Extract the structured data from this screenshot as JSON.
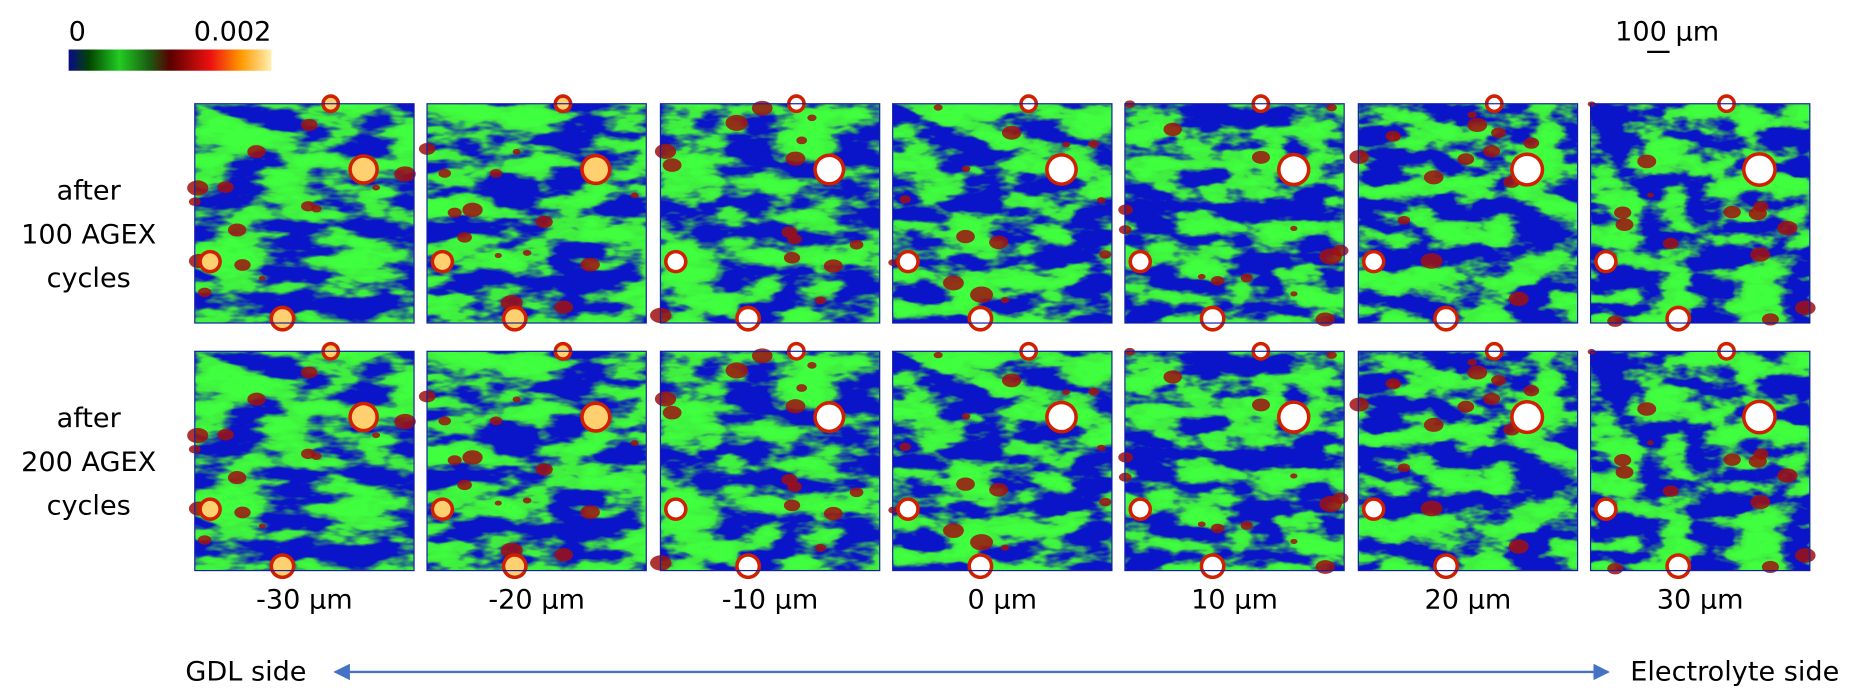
{
  "colorbar": {
    "ticks": [
      0,
      0.002
    ]
  },
  "scale_bar": "100 µm",
  "row_labels": [
    [
      "after",
      "100 AGEX",
      "cycles"
    ],
    [
      "after",
      "200 AGEX",
      "cycles"
    ]
  ],
  "column_labels": [
    "-30 µm",
    "-20 µm",
    "-10 µm",
    "0 µm",
    "10 µm",
    "20 µm",
    "30 µm"
  ],
  "axis": {
    "left": "GDL side",
    "right": "Electrolyte side"
  }
}
